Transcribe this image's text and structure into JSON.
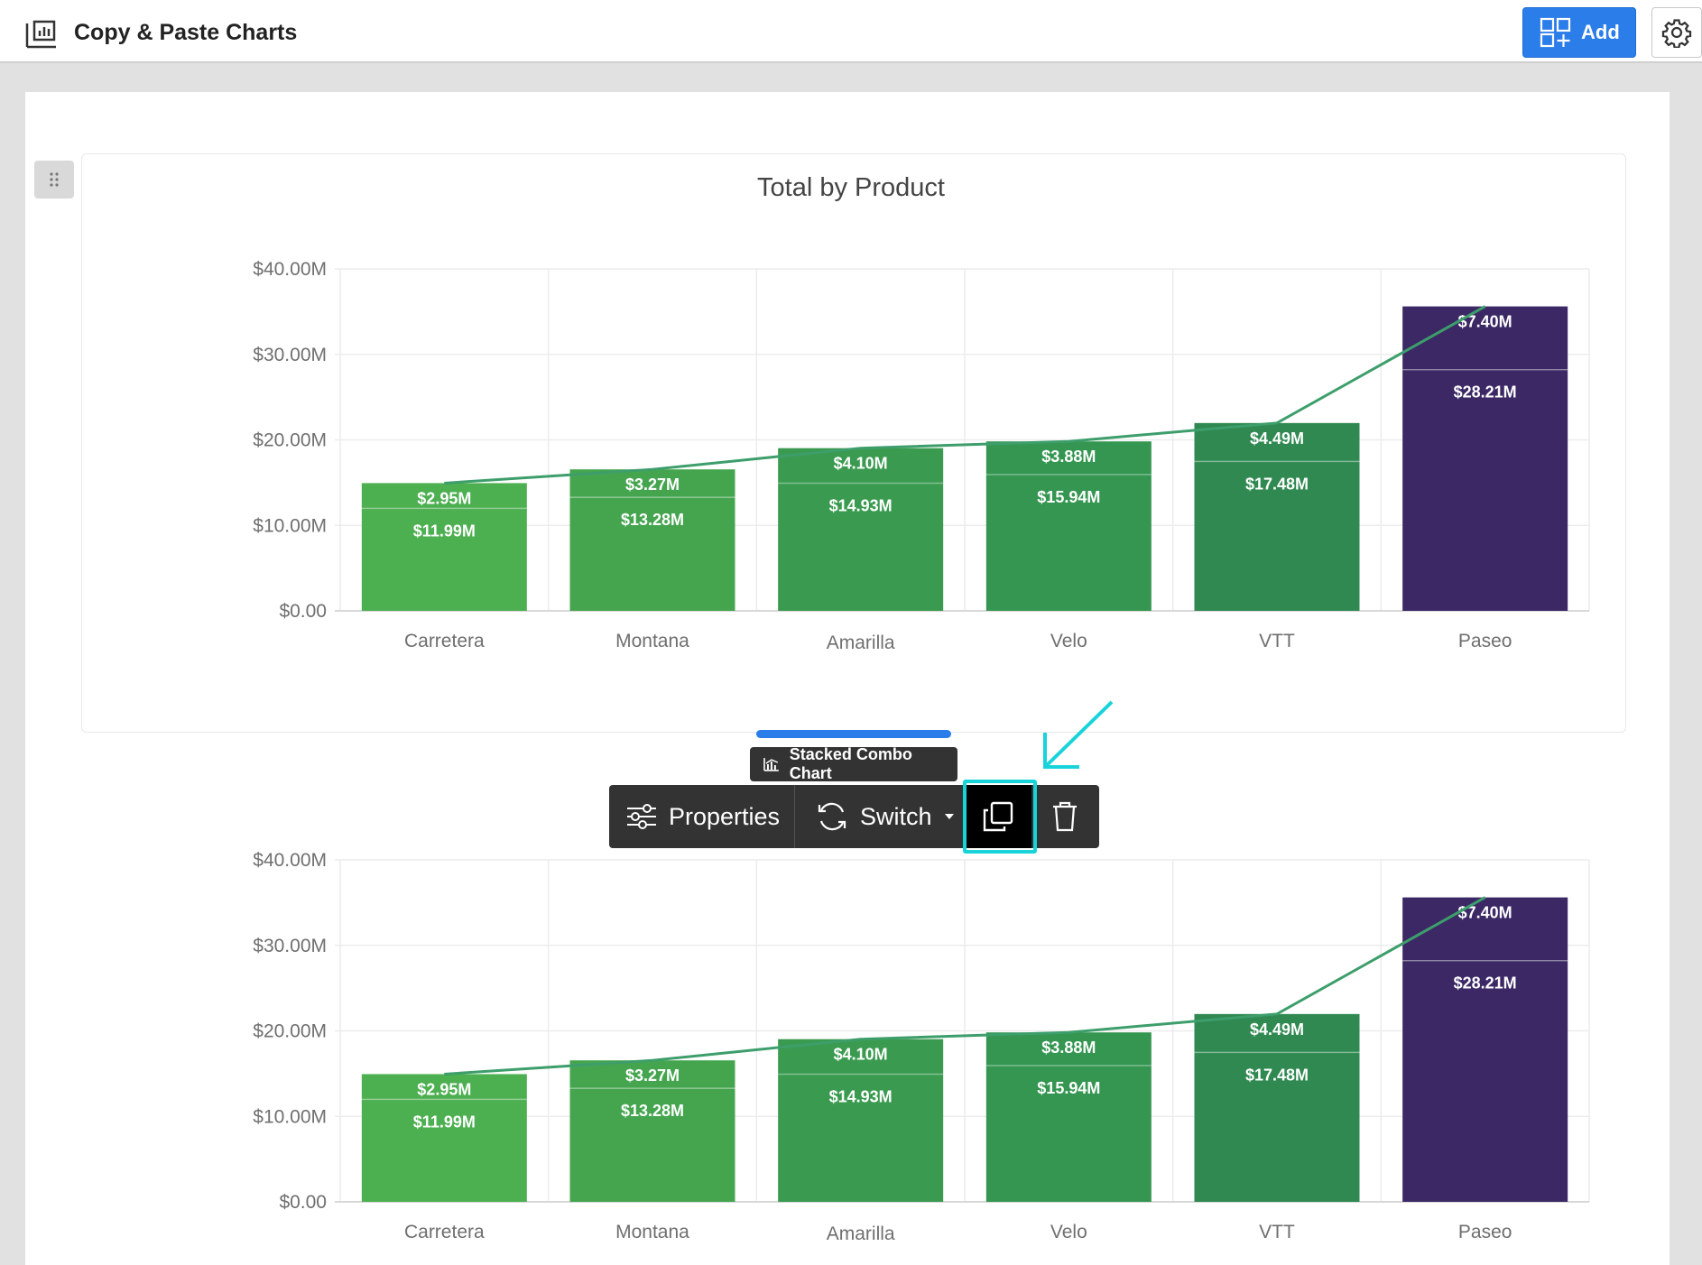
{
  "header": {
    "title": "Copy & Paste Charts",
    "add_label": "Add"
  },
  "toolbar": {
    "tooltip": "Stacked Combo Chart",
    "properties_label": "Properties",
    "switch_label": "Switch"
  },
  "colors": {
    "accent": "#2b7de9",
    "highlight": "#19d3da",
    "line": "#3d9e6b",
    "bars": [
      "#4caf50",
      "#45a54f",
      "#3a9b50",
      "#349651",
      "#2f8951",
      "#3b2865"
    ]
  },
  "chart_data": [
    {
      "type": "bar",
      "stacked": true,
      "title": "Total by Product",
      "categories": [
        "Carretera",
        "Montana",
        "Amarilla",
        "Velo",
        "VTT",
        "Paseo"
      ],
      "series": [
        {
          "values": [
            11.99,
            13.28,
            14.93,
            15.94,
            17.48,
            28.21
          ],
          "labels": [
            "$11.99M",
            "$13.28M",
            "$14.93M",
            "$15.94M",
            "$17.48M",
            "$28.21M"
          ]
        },
        {
          "values": [
            2.95,
            3.27,
            4.1,
            3.88,
            4.49,
            7.4
          ],
          "labels": [
            "$2.95M",
            "$3.27M",
            "$4.10M",
            "$3.88M",
            "$4.49M",
            "$7.40M"
          ]
        }
      ],
      "line_values": [
        14.94,
        16.55,
        19.03,
        19.82,
        21.97,
        35.61
      ],
      "yticks": [
        "$0.00",
        "$10.00M",
        "$20.00M",
        "$30.00M",
        "$40.00M"
      ],
      "ylim": [
        0,
        40
      ],
      "grid": true
    },
    {
      "type": "bar",
      "stacked": true,
      "title": "",
      "categories": [
        "Carretera",
        "Montana",
        "Amarilla",
        "Velo",
        "VTT",
        "Paseo"
      ],
      "series": [
        {
          "values": [
            11.99,
            13.28,
            14.93,
            15.94,
            17.48,
            28.21
          ],
          "labels": [
            "$11.99M",
            "$13.28M",
            "$14.93M",
            "$15.94M",
            "$17.48M",
            "$28.21M"
          ]
        },
        {
          "values": [
            2.95,
            3.27,
            4.1,
            3.88,
            4.49,
            7.4
          ],
          "labels": [
            "$2.95M",
            "$3.27M",
            "$4.10M",
            "$3.88M",
            "$4.49M",
            "$7.40M"
          ]
        }
      ],
      "line_values": [
        14.94,
        16.55,
        19.03,
        19.82,
        21.97,
        35.61
      ],
      "yticks": [
        "$0.00",
        "$10.00M",
        "$20.00M",
        "$30.00M",
        "$40.00M"
      ],
      "ylim": [
        0,
        40
      ],
      "grid": true
    }
  ]
}
